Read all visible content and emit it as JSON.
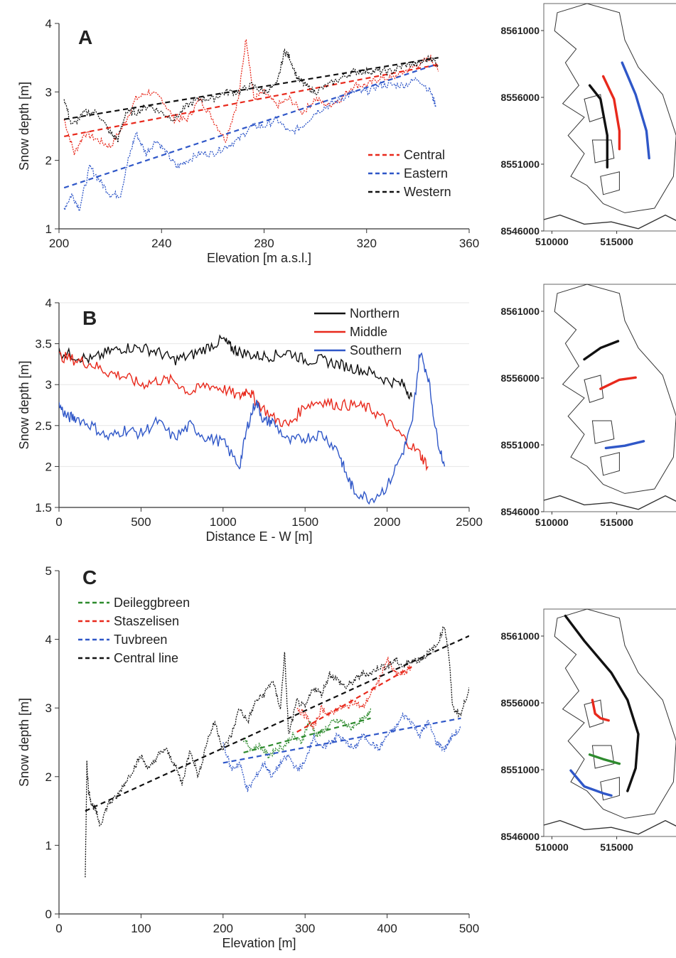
{
  "colors": {
    "black": "#111111",
    "red": "#e8291c",
    "blue": "#2f57c8",
    "green": "#2e8b2e",
    "grid": "#e6e6e6"
  },
  "chart_data": [
    {
      "type": "line",
      "panel": "A",
      "xlabel": "Elevation [m a.s.l.]",
      "ylabel": "Snow depth [m]",
      "xlim": [
        200,
        360
      ],
      "ylim": [
        1,
        4
      ],
      "xticks": [
        200,
        240,
        280,
        320,
        360
      ],
      "yticks": [
        1,
        2,
        3,
        4
      ],
      "legend_position": "bottom-right",
      "series": [
        {
          "name": "Central",
          "color": "#e8291c",
          "style": "dotted",
          "x": [
            202,
            206,
            210,
            215,
            220,
            225,
            230,
            235,
            240,
            245,
            250,
            255,
            260,
            265,
            270,
            273,
            276,
            280,
            285,
            290,
            295,
            300,
            305,
            310,
            315,
            320,
            325,
            330,
            335,
            340,
            345,
            348
          ],
          "y": [
            2.6,
            2.1,
            2.4,
            2.3,
            2.2,
            2.5,
            2.9,
            3.0,
            2.9,
            2.6,
            2.6,
            2.9,
            2.6,
            2.3,
            2.9,
            3.8,
            2.9,
            3.0,
            2.8,
            2.9,
            2.7,
            2.9,
            2.8,
            2.9,
            3.1,
            3.1,
            3.2,
            3.2,
            3.3,
            3.4,
            3.5,
            3.3
          ],
          "trend": [
            2.35,
            3.4
          ]
        },
        {
          "name": "Eastern",
          "color": "#2f57c8",
          "style": "dotted",
          "x": [
            202,
            205,
            208,
            212,
            216,
            220,
            224,
            227,
            230,
            234,
            238,
            242,
            246,
            250,
            255,
            260,
            265,
            270,
            275,
            280,
            285,
            290,
            295,
            300,
            305,
            310,
            315,
            320,
            325,
            330,
            335,
            340,
            345,
            347
          ],
          "y": [
            1.3,
            1.5,
            1.3,
            1.9,
            1.7,
            1.5,
            1.5,
            2.0,
            2.4,
            2.1,
            2.3,
            2.1,
            1.9,
            2.0,
            2.1,
            2.1,
            2.2,
            2.3,
            2.5,
            2.5,
            2.6,
            2.4,
            2.5,
            2.7,
            2.8,
            2.9,
            3.0,
            3.0,
            3.1,
            3.1,
            3.1,
            3.2,
            3.0,
            2.8
          ],
          "trend": [
            1.6,
            3.4
          ]
        },
        {
          "name": "Western",
          "color": "#111111",
          "style": "dotted",
          "x": [
            202,
            205,
            210,
            215,
            220,
            223,
            226,
            230,
            235,
            240,
            245,
            250,
            255,
            260,
            265,
            270,
            275,
            280,
            285,
            288,
            290,
            293,
            296,
            300,
            305,
            310,
            315,
            320,
            325,
            330,
            335,
            340,
            345,
            348
          ],
          "y": [
            2.9,
            2.5,
            2.7,
            2.7,
            2.4,
            2.3,
            2.7,
            2.7,
            2.8,
            2.7,
            2.6,
            2.8,
            2.9,
            2.9,
            3.0,
            3.0,
            3.1,
            3.0,
            3.1,
            3.6,
            3.5,
            3.2,
            3.1,
            3.0,
            3.1,
            3.2,
            3.3,
            3.3,
            3.3,
            3.3,
            3.4,
            3.4,
            3.5,
            3.4
          ],
          "trend": [
            2.6,
            3.5
          ]
        }
      ]
    },
    {
      "type": "line",
      "panel": "B",
      "xlabel": "Distance E - W [m]",
      "ylabel": "Snow depth [m]",
      "xlim": [
        0,
        2500
      ],
      "ylim": [
        1.5,
        4
      ],
      "xticks": [
        0,
        500,
        1000,
        1500,
        2000,
        2500
      ],
      "yticks": [
        1.5,
        2,
        2.5,
        3,
        3.5,
        4
      ],
      "legend_position": "top-right",
      "series": [
        {
          "name": "Northern",
          "color": "#111111",
          "style": "solid",
          "x": [
            0,
            100,
            200,
            300,
            400,
            500,
            600,
            700,
            800,
            900,
            1000,
            1050,
            1100,
            1200,
            1300,
            1400,
            1500,
            1600,
            1700,
            1800,
            1900,
            2000,
            2100,
            2150
          ],
          "y": [
            3.4,
            3.35,
            3.3,
            3.4,
            3.45,
            3.45,
            3.4,
            3.3,
            3.35,
            3.45,
            3.55,
            3.45,
            3.4,
            3.35,
            3.35,
            3.4,
            3.3,
            3.3,
            3.25,
            3.2,
            3.15,
            3.05,
            3.0,
            2.85
          ]
        },
        {
          "name": "Middle",
          "color": "#e8291c",
          "style": "solid",
          "x": [
            0,
            100,
            200,
            300,
            400,
            500,
            600,
            700,
            800,
            900,
            1000,
            1100,
            1150,
            1200,
            1300,
            1400,
            1500,
            1600,
            1700,
            1800,
            1900,
            2000,
            2100,
            2200,
            2250
          ],
          "y": [
            3.35,
            3.3,
            3.25,
            3.15,
            3.1,
            3.0,
            3.05,
            3.05,
            2.9,
            3.0,
            2.95,
            2.85,
            2.95,
            2.8,
            2.6,
            2.5,
            2.75,
            2.8,
            2.75,
            2.75,
            2.7,
            2.55,
            2.35,
            2.15,
            2.0
          ]
        },
        {
          "name": "Southern",
          "color": "#2f57c8",
          "style": "solid",
          "x": [
            0,
            50,
            100,
            200,
            300,
            400,
            500,
            600,
            700,
            800,
            900,
            1000,
            1100,
            1150,
            1200,
            1250,
            1300,
            1400,
            1500,
            1600,
            1700,
            1750,
            1800,
            1900,
            2000,
            2100,
            2150,
            2200,
            2250,
            2300,
            2350
          ],
          "y": [
            2.75,
            2.6,
            2.6,
            2.5,
            2.35,
            2.45,
            2.4,
            2.55,
            2.35,
            2.5,
            2.35,
            2.3,
            2.0,
            2.5,
            2.8,
            2.55,
            2.55,
            2.3,
            2.35,
            2.4,
            2.2,
            1.9,
            1.7,
            1.6,
            1.75,
            2.2,
            2.5,
            3.4,
            3.1,
            2.4,
            2.0
          ]
        }
      ]
    },
    {
      "type": "line",
      "panel": "C",
      "xlabel": "Elevation [m]",
      "ylabel": "Snow depth [m]",
      "xlim": [
        0,
        500
      ],
      "ylim": [
        0,
        5
      ],
      "xticks": [
        0,
        100,
        200,
        300,
        400,
        500
      ],
      "yticks": [
        0,
        1,
        2,
        3,
        4,
        5
      ],
      "legend_position": "top-left",
      "series": [
        {
          "name": "Deileggbreen",
          "color": "#2e8b2e",
          "style": "dotted",
          "x": [
            225,
            235,
            245,
            255,
            265,
            275,
            285,
            295,
            305,
            315,
            325,
            335,
            345,
            355,
            365,
            375,
            380
          ],
          "y": [
            2.55,
            2.4,
            2.45,
            2.3,
            2.4,
            2.45,
            2.6,
            2.5,
            2.8,
            2.6,
            2.7,
            2.8,
            2.8,
            2.7,
            2.8,
            2.85,
            3.0
          ],
          "trend": [
            2.35,
            2.85
          ]
        },
        {
          "name": "Staszelisen",
          "color": "#e8291c",
          "style": "dotted",
          "x": [
            290,
            300,
            310,
            320,
            330,
            340,
            350,
            360,
            370,
            380,
            390,
            400,
            410,
            420,
            430
          ],
          "y": [
            3.0,
            2.9,
            2.7,
            3.0,
            2.9,
            3.0,
            3.0,
            3.1,
            3.0,
            3.2,
            3.4,
            3.7,
            3.5,
            3.5,
            3.6
          ],
          "trend": [
            2.65,
            3.6
          ]
        },
        {
          "name": "Tuvbreen",
          "color": "#2f57c8",
          "style": "dotted",
          "x": [
            200,
            210,
            220,
            230,
            240,
            250,
            260,
            270,
            280,
            290,
            300,
            310,
            320,
            330,
            340,
            350,
            360,
            370,
            380,
            390,
            400,
            410,
            420,
            430,
            440,
            450,
            460,
            470,
            480,
            490
          ],
          "y": [
            2.5,
            2.1,
            2.2,
            1.8,
            2.0,
            2.2,
            2.0,
            2.2,
            2.3,
            2.1,
            2.2,
            2.6,
            2.4,
            2.5,
            2.6,
            2.5,
            2.4,
            2.6,
            2.5,
            2.4,
            2.6,
            2.7,
            2.9,
            2.8,
            2.6,
            2.8,
            2.5,
            2.4,
            2.6,
            2.7
          ],
          "trend": [
            2.2,
            2.85
          ]
        },
        {
          "name": "Central line",
          "color": "#111111",
          "style": "dotted",
          "x": [
            32,
            34,
            36,
            40,
            45,
            50,
            60,
            70,
            80,
            90,
            100,
            110,
            120,
            130,
            140,
            150,
            160,
            170,
            180,
            190,
            200,
            210,
            220,
            230,
            240,
            250,
            260,
            270,
            275,
            280,
            290,
            300,
            310,
            320,
            330,
            340,
            350,
            360,
            370,
            380,
            390,
            400,
            410,
            420,
            430,
            440,
            450,
            460,
            470,
            475,
            480,
            490,
            500
          ],
          "y": [
            0.5,
            2.2,
            1.8,
            1.6,
            1.5,
            1.3,
            1.6,
            1.7,
            1.9,
            2.1,
            2.3,
            2.1,
            2.3,
            2.4,
            2.2,
            1.9,
            2.4,
            2.0,
            2.5,
            2.8,
            2.4,
            2.6,
            3.0,
            2.8,
            3.1,
            3.2,
            3.4,
            3.0,
            3.8,
            2.6,
            3.1,
            3.0,
            3.3,
            3.2,
            3.5,
            3.4,
            3.3,
            3.4,
            3.5,
            3.5,
            3.6,
            3.6,
            3.7,
            3.6,
            3.7,
            3.7,
            3.8,
            3.9,
            4.2,
            3.8,
            3.0,
            2.9,
            3.3
          ],
          "trend": [
            1.5,
            4.05
          ]
        }
      ]
    },
    {
      "type": "map",
      "panel": "map-A",
      "yticks": [
        "8561000",
        "8556000",
        "8551000",
        "8546000"
      ],
      "xticks": [
        "510000",
        "515000"
      ],
      "lines": [
        {
          "color": "#111111",
          "label": "Western"
        },
        {
          "color": "#e8291c",
          "label": "Central"
        },
        {
          "color": "#2f57c8",
          "label": "Eastern"
        }
      ]
    },
    {
      "type": "map",
      "panel": "map-B",
      "yticks": [
        "8561000",
        "8556000",
        "8551000",
        "8546000"
      ],
      "xticks": [
        "510000",
        "515000"
      ],
      "lines": [
        {
          "color": "#111111",
          "label": "Northern"
        },
        {
          "color": "#e8291c",
          "label": "Middle"
        },
        {
          "color": "#2f57c8",
          "label": "Southern"
        }
      ]
    },
    {
      "type": "map",
      "panel": "map-C",
      "yticks": [
        "8561000",
        "8556000",
        "8551000",
        "8546000"
      ],
      "xticks": [
        "510000",
        "515000"
      ],
      "lines": [
        {
          "color": "#111111",
          "label": "Central line"
        },
        {
          "color": "#e8291c",
          "label": "Staszelisen"
        },
        {
          "color": "#2e8b2e",
          "label": "Deileggbreen"
        },
        {
          "color": "#2f57c8",
          "label": "Tuvbreen"
        }
      ]
    }
  ]
}
